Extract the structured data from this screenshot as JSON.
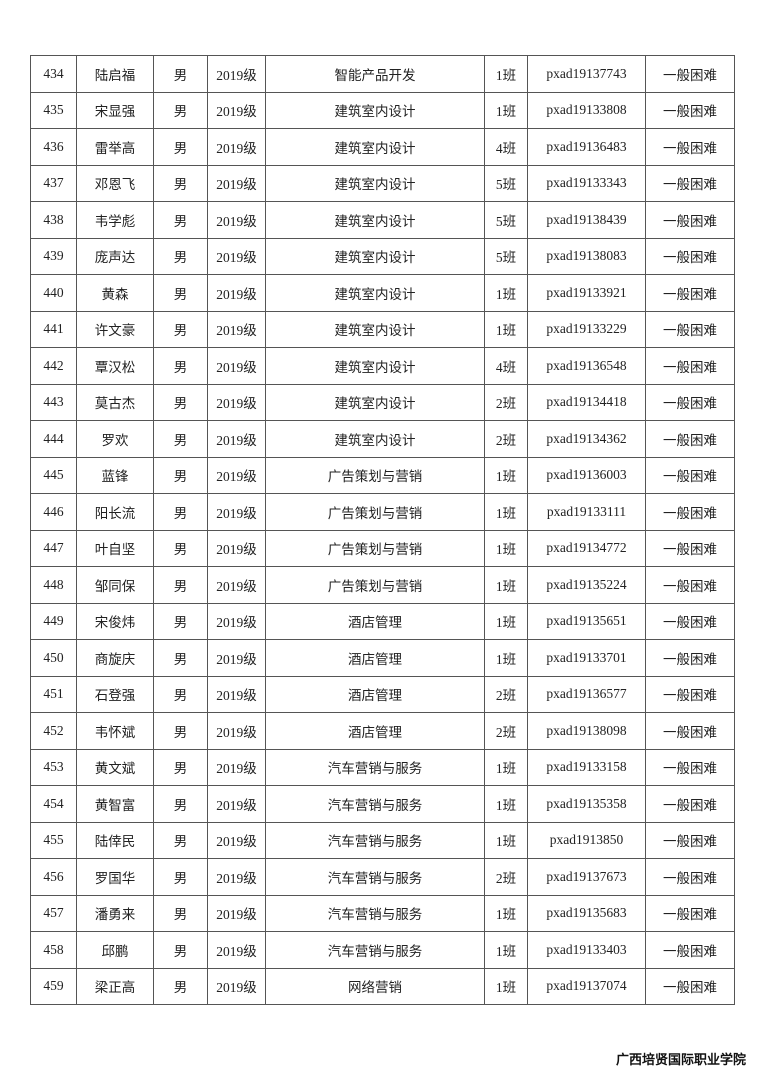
{
  "rows": [
    [
      "434",
      "陆启福",
      "男",
      "2019级",
      "智能产品开发",
      "1班",
      "pxad19137743",
      "一般困难"
    ],
    [
      "435",
      "宋显强",
      "男",
      "2019级",
      "建筑室内设计",
      "1班",
      "pxad19133808",
      "一般困难"
    ],
    [
      "436",
      "雷举高",
      "男",
      "2019级",
      "建筑室内设计",
      "4班",
      "pxad19136483",
      "一般困难"
    ],
    [
      "437",
      "邓恩飞",
      "男",
      "2019级",
      "建筑室内设计",
      "5班",
      "pxad19133343",
      "一般困难"
    ],
    [
      "438",
      "韦学彪",
      "男",
      "2019级",
      "建筑室内设计",
      "5班",
      "pxad19138439",
      "一般困难"
    ],
    [
      "439",
      "庞声达",
      "男",
      "2019级",
      "建筑室内设计",
      "5班",
      "pxad19138083",
      "一般困难"
    ],
    [
      "440",
      "黄森",
      "男",
      "2019级",
      "建筑室内设计",
      "1班",
      "pxad19133921",
      "一般困难"
    ],
    [
      "441",
      "许文豪",
      "男",
      "2019级",
      "建筑室内设计",
      "1班",
      "pxad19133229",
      "一般困难"
    ],
    [
      "442",
      "覃汉松",
      "男",
      "2019级",
      "建筑室内设计",
      "4班",
      "pxad19136548",
      "一般困难"
    ],
    [
      "443",
      "莫古杰",
      "男",
      "2019级",
      "建筑室内设计",
      "2班",
      "pxad19134418",
      "一般困难"
    ],
    [
      "444",
      "罗欢",
      "男",
      "2019级",
      "建筑室内设计",
      "2班",
      "pxad19134362",
      "一般困难"
    ],
    [
      "445",
      "蓝锋",
      "男",
      "2019级",
      "广告策划与营销",
      "1班",
      "pxad19136003",
      "一般困难"
    ],
    [
      "446",
      "阳长流",
      "男",
      "2019级",
      "广告策划与营销",
      "1班",
      "pxad19133111",
      "一般困难"
    ],
    [
      "447",
      "叶自坚",
      "男",
      "2019级",
      "广告策划与营销",
      "1班",
      "pxad19134772",
      "一般困难"
    ],
    [
      "448",
      "邹同保",
      "男",
      "2019级",
      "广告策划与营销",
      "1班",
      "pxad19135224",
      "一般困难"
    ],
    [
      "449",
      "宋俊炜",
      "男",
      "2019级",
      "酒店管理",
      "1班",
      "pxad19135651",
      "一般困难"
    ],
    [
      "450",
      "商旋庆",
      "男",
      "2019级",
      "酒店管理",
      "1班",
      "pxad19133701",
      "一般困难"
    ],
    [
      "451",
      "石登强",
      "男",
      "2019级",
      "酒店管理",
      "2班",
      "pxad19136577",
      "一般困难"
    ],
    [
      "452",
      "韦怀斌",
      "男",
      "2019级",
      "酒店管理",
      "2班",
      "pxad19138098",
      "一般困难"
    ],
    [
      "453",
      "黄文斌",
      "男",
      "2019级",
      "汽车营销与服务",
      "1班",
      "pxad19133158",
      "一般困难"
    ],
    [
      "454",
      "黄智富",
      "男",
      "2019级",
      "汽车营销与服务",
      "1班",
      "pxad19135358",
      "一般困难"
    ],
    [
      "455",
      "陆倖民",
      "男",
      "2019级",
      "汽车营销与服务",
      "1班",
      "pxad1913850",
      "一般困难"
    ],
    [
      "456",
      "罗国华",
      "男",
      "2019级",
      "汽车营销与服务",
      "2班",
      "pxad19137673",
      "一般困难"
    ],
    [
      "457",
      "潘勇来",
      "男",
      "2019级",
      "汽车营销与服务",
      "1班",
      "pxad19135683",
      "一般困难"
    ],
    [
      "458",
      "邱鹏",
      "男",
      "2019级",
      "汽车营销与服务",
      "1班",
      "pxad19133403",
      "一般困难"
    ],
    [
      "459",
      "梁正高",
      "男",
      "2019级",
      "网络营销",
      "1班",
      "pxad19137074",
      "一般困难"
    ]
  ],
  "footer": "广西培贤国际职业学院"
}
